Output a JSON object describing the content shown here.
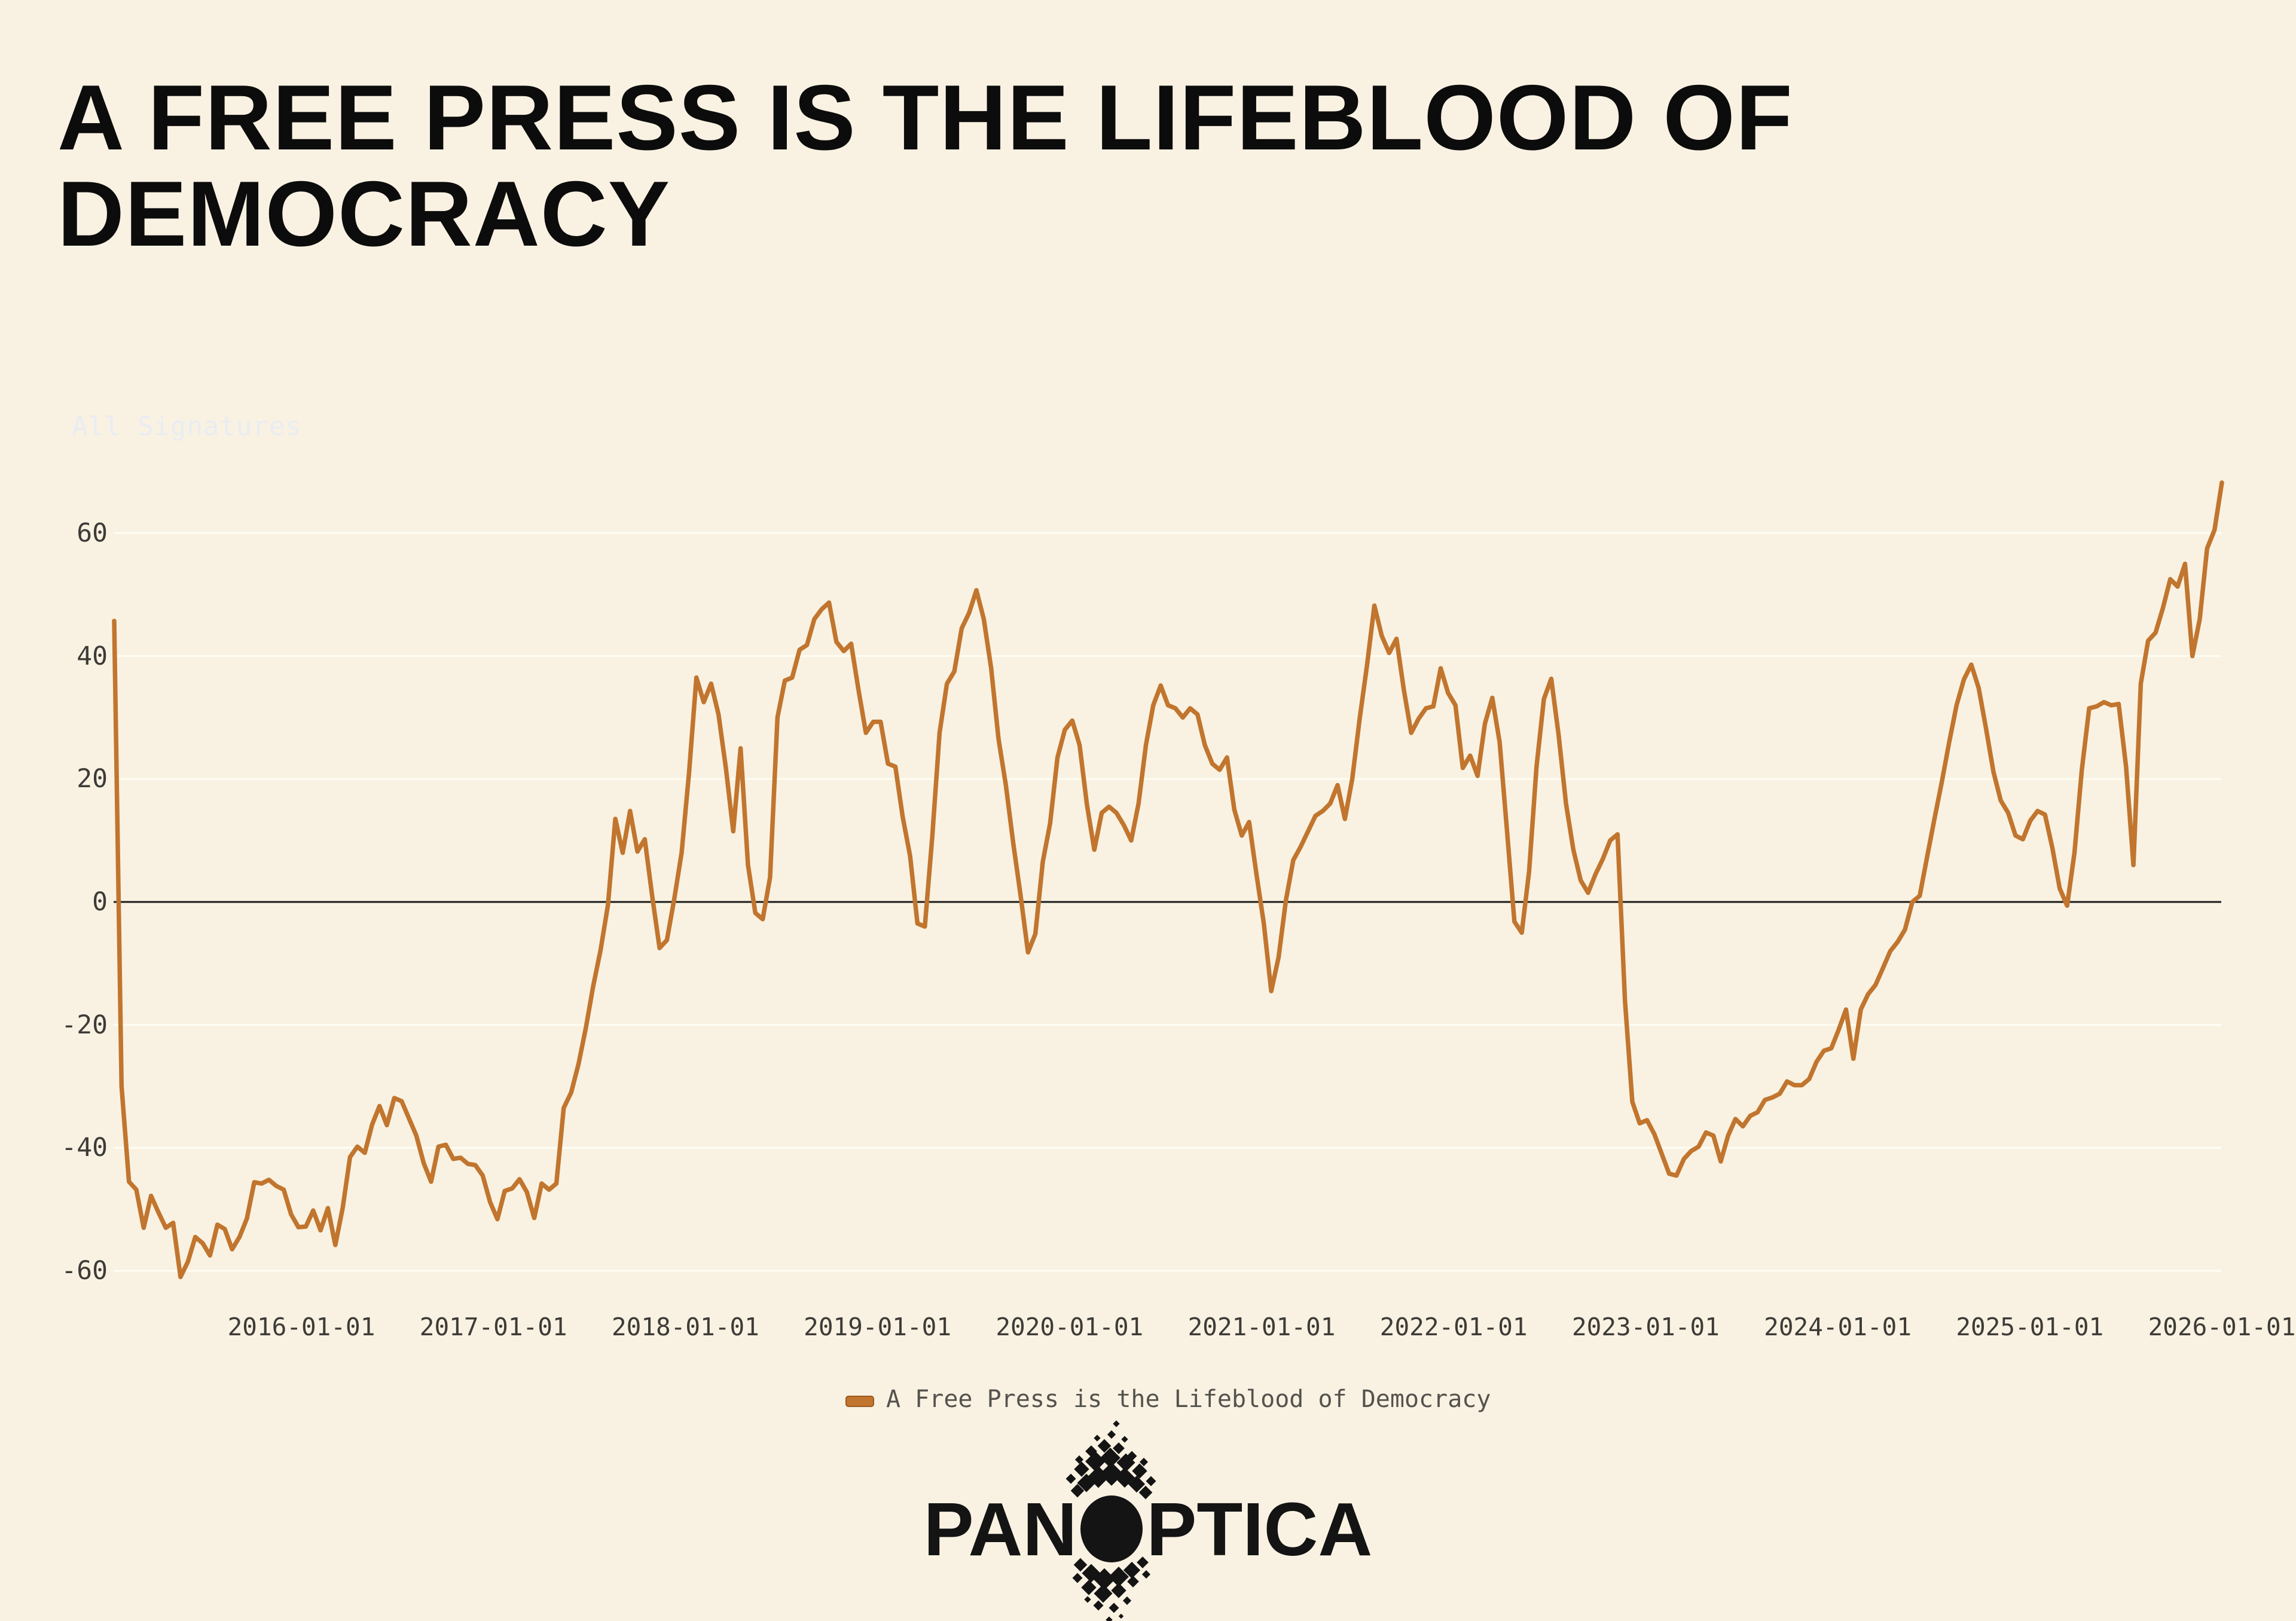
{
  "page": {
    "background_color": "#f9f2e2"
  },
  "title": {
    "line1": "A FREE PRESS IS THE LIFEBLOOD OF",
    "line2": "DEMOCRACY"
  },
  "watermark": {
    "text": "All Signatures",
    "color": "#e9ecf3"
  },
  "legend": {
    "label": "A Free Press is the Lifeblood of Democracy",
    "swatch_color": "#c1752e"
  },
  "logo": {
    "text_left": "PAN",
    "text_right": "PTICA"
  },
  "chart_data": {
    "type": "line",
    "title": "",
    "xlabel": "",
    "ylabel": "",
    "grid": "horizontal",
    "zero_line": true,
    "colors": {
      "line": "#c1752e",
      "gridline": "#fffdf4",
      "zero_line": "#1b1b1b",
      "tick_text": "#3d3b37"
    },
    "y_axis": {
      "ticks": [
        60,
        40,
        20,
        0,
        -20,
        -40,
        -60
      ],
      "range": [
        -70,
        78
      ]
    },
    "x_axis": {
      "tick_labels": [
        "2016-01-01",
        "2017-01-01",
        "2018-01-01",
        "2019-01-01",
        "2020-01-01",
        "2021-01-01",
        "2022-01-01",
        "2023-01-01",
        "2024-01-01",
        "2025-01-01",
        "2026-01-01"
      ]
    },
    "series": [
      {
        "name": "A Free Press is the Lifeblood of Democracy",
        "start_date": "2015-01-10",
        "end_date": "2026-01-01",
        "interval_days": 14,
        "values": [
          45.7,
          -30,
          -45.5,
          -46.8,
          -53,
          -47.8,
          -50.5,
          -53,
          -52.2,
          -61,
          -58.5,
          -54.5,
          -55.5,
          -57.5,
          -52.5,
          -53.2,
          -56.5,
          -54.5,
          -51.5,
          -45.6,
          -45.8,
          -45.2,
          -46.2,
          -46.8,
          -50.8,
          -52.9,
          -52.8,
          -50.2,
          -53.4,
          -49.8,
          -55.8,
          -49.8,
          -41.5,
          -39.8,
          -40.8,
          -36.2,
          -33.2,
          -36.3,
          -31.9,
          -32.4,
          -35.2,
          -38,
          -42.5,
          -45.5,
          -39.8,
          -39.5,
          -41.8,
          -41.6,
          -42.6,
          -42.8,
          -44.5,
          -48.8,
          -51.6,
          -47,
          -46.6,
          -45.1,
          -47.2,
          -51.4,
          -45.8,
          -46.8,
          -45.8,
          -33.5,
          -31,
          -26.4,
          -20.5,
          -13.7,
          -7.8,
          -0.5,
          13.5,
          8,
          14.8,
          8.2,
          10.2,
          1,
          -7.5,
          -6.2,
          0.5,
          8,
          21,
          36.5,
          32.5,
          35.5,
          30.5,
          21.8,
          11.5,
          25,
          6,
          -1.8,
          -2.8,
          4,
          30,
          36,
          36.5,
          41,
          41.8,
          46,
          47.6,
          48.7,
          42.3,
          40.8,
          42,
          34.5,
          27.5,
          29.3,
          29.3,
          22.5,
          22,
          13.8,
          7.5,
          -3.5,
          -4,
          10.5,
          27.5,
          35.5,
          37.5,
          44.5,
          47,
          50.7,
          46,
          38,
          26.5,
          19,
          9.5,
          1,
          -8.2,
          -5.2,
          6.5,
          12.8,
          23.5,
          28,
          29.5,
          25.5,
          15.8,
          8.5,
          14.5,
          15.5,
          14.5,
          12.5,
          10,
          16,
          25.5,
          32,
          35.2,
          32,
          31.5,
          30,
          31.5,
          30.5,
          25.5,
          22.5,
          21.5,
          23.5,
          15,
          10.8,
          13,
          4.5,
          -3.5,
          -14.5,
          -9,
          0.3,
          6.8,
          9,
          11.5,
          14,
          14.8,
          16,
          19,
          13.5,
          20,
          29.8,
          38.5,
          48.2,
          43.3,
          40.5,
          42.8,
          34.5,
          27.5,
          29.8,
          31.5,
          31.8,
          38,
          34,
          32,
          21.8,
          23.8,
          20.5,
          29,
          33.2,
          26,
          11.5,
          -3.2,
          -5,
          5,
          22,
          33,
          36.3,
          27.2,
          16,
          8.5,
          3.5,
          1.5,
          4.5,
          7,
          10,
          11,
          -16,
          -32.5,
          -36,
          -35.5,
          -37.8,
          -41,
          -44.2,
          -44.5,
          -41.8,
          -40.5,
          -39.8,
          -37.5,
          -38,
          -42.2,
          -38,
          -35.3,
          -36.5,
          -34.8,
          -34.2,
          -32.2,
          -31.8,
          -31.2,
          -29.2,
          -29.8,
          -29.8,
          -28.8,
          -26,
          -24.2,
          -23.8,
          -20.8,
          -17.5,
          -25.5,
          -17.5,
          -15,
          -13.5,
          -10.8,
          -8,
          -6.5,
          -4.5,
          0,
          1,
          7.3,
          13.5,
          19.5,
          26,
          32,
          36.2,
          38.6,
          34.8,
          28.2,
          21.2,
          16.5,
          14.5,
          10.8,
          10.2,
          13.2,
          14.8,
          14.2,
          8.8,
          2.2,
          -0.6,
          8,
          21.5,
          31.5,
          31.8,
          32.5,
          32,
          32.2,
          22,
          6,
          35.5,
          42.5,
          43.8,
          47.8,
          52.5,
          51.3,
          55,
          40,
          46,
          57.5,
          60.5,
          68.2
        ]
      }
    ]
  }
}
